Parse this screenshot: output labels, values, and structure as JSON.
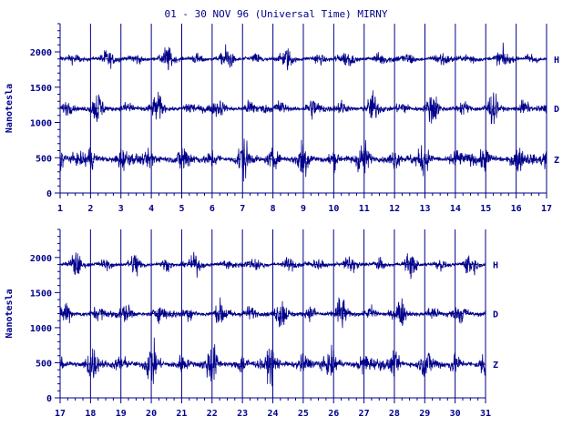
{
  "title": "01 - 30 NOV 96 (Universal Time) MIRNY",
  "colors": {
    "axis": "#00008b",
    "trace": "#00008b",
    "background": "#ffffff"
  },
  "chart_data": [
    {
      "type": "line",
      "ylabel": "Nanotesla",
      "ylim": [
        0,
        2400
      ],
      "yticks": [
        0,
        500,
        1000,
        1500,
        2000
      ],
      "xlim": [
        1,
        17
      ],
      "xticks": [
        "1",
        "2",
        "3",
        "4",
        "5",
        "6",
        "7",
        "8",
        "9",
        "10",
        "11",
        "12",
        "13",
        "14",
        "15",
        "16",
        "17"
      ],
      "grid": "vertical day lines",
      "series": [
        {
          "name": "H",
          "baseline": 1900
        },
        {
          "name": "D",
          "baseline": 1200
        },
        {
          "name": "Z",
          "baseline": 480
        }
      ]
    },
    {
      "type": "line",
      "ylabel": "Nanotesla",
      "ylim": [
        0,
        2400
      ],
      "yticks": [
        0,
        500,
        1000,
        1500,
        2000
      ],
      "xlim": [
        17,
        31
      ],
      "xticks": [
        "17",
        "18",
        "19",
        "20",
        "21",
        "22",
        "23",
        "24",
        "25",
        "26",
        "27",
        "28",
        "29",
        "30",
        "31"
      ],
      "grid": "vertical day lines",
      "series": [
        {
          "name": "H",
          "baseline": 1900
        },
        {
          "name": "D",
          "baseline": 1200
        },
        {
          "name": "Z",
          "baseline": 480
        }
      ]
    }
  ]
}
